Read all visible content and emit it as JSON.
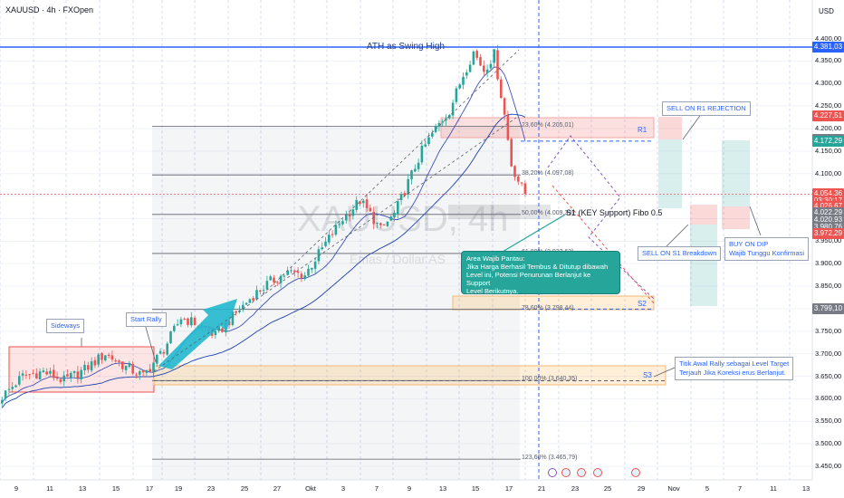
{
  "header": {
    "symbol": "XAUUSD · 4h · FXOpen",
    "currency": "USD"
  },
  "watermark": {
    "main": "XAUUSD, 4h",
    "sub": "Emas / Dollar AS"
  },
  "colors": {
    "up": "#26a69a",
    "down": "#ef5350",
    "accent": "#2962ff",
    "ma": "#3f51b5"
  },
  "chart_data": {
    "type": "candlestick",
    "ylim": [
      3440,
      4420
    ],
    "y_ticks": [
      "4.400,00",
      "4.350,00",
      "4.300,00",
      "4.250,00",
      "4.200,00",
      "4.150,00",
      "4.100,00",
      "4.050,00",
      "4.000,00",
      "3.950,00",
      "3.900,00",
      "3.850,00",
      "3.800,00",
      "3.750,00",
      "3.700,00",
      "3.650,00",
      "3.600,00",
      "3.550,00",
      "3.500,00",
      "3.450,00"
    ],
    "y_tick_values": [
      4400,
      4350,
      4300,
      4250,
      4200,
      4150,
      4100,
      4050,
      4000,
      3950,
      3900,
      3850,
      3800,
      3750,
      3700,
      3650,
      3600,
      3550,
      3500,
      3450
    ],
    "x_ticks": [
      "9",
      "11",
      "13",
      "15",
      "17",
      "19",
      "23",
      "25",
      "27",
      "Okt",
      "3",
      "7",
      "9",
      "13",
      "15",
      "17",
      "21",
      "23",
      "25",
      "29",
      "Nov",
      "5",
      "7",
      "11",
      "13"
    ],
    "price_tags": [
      {
        "label": "4.381,03",
        "value": 4381.03,
        "color": "#2962ff"
      },
      {
        "label": "4.227,51",
        "value": 4227.51,
        "color": "#ef5350"
      },
      {
        "label": "4.175,87",
        "value": 4175.87,
        "color": "#787b86"
      },
      {
        "label": "4.172,29",
        "value": 4172.29,
        "color": "#26a69a"
      },
      {
        "label": "4.054,36",
        "value": 4054.36,
        "color": "#ef5350"
      },
      {
        "label": "03:30:17",
        "value": 4040,
        "color": "#ef5350"
      },
      {
        "label": "4.026,67",
        "value": 4026.67,
        "color": "#ef5350"
      },
      {
        "label": "4.022,29",
        "value": 4012,
        "color": "#787b86"
      },
      {
        "label": "4.020,93",
        "value": 3997,
        "color": "#787b86"
      },
      {
        "label": "3.980,76",
        "value": 3981,
        "color": "#787b86"
      },
      {
        "label": "3.972,29",
        "value": 3966,
        "color": "#ef5350"
      },
      {
        "label": "3.799,10",
        "value": 3799.1,
        "color": "#787b86"
      }
    ],
    "fib_levels": [
      {
        "label": "23,60% (4.205,01)",
        "value": 4205.01
      },
      {
        "label": "38,20% (4.097,08)",
        "value": 4097.08
      },
      {
        "label": "50,00% (4.009,39)",
        "value": 4009.39
      },
      {
        "label": "61,80% (3.922,62)",
        "value": 3922.62
      },
      {
        "label": "78,60% (3.798,44)",
        "value": 3798.44
      },
      {
        "label": "100,00% (3.640,35)",
        "value": 3640.35
      },
      {
        "label": "123,60% (3.465,79)",
        "value": 3465.79
      }
    ],
    "levels": [
      {
        "label": "ATH as Swing High",
        "value": 4381
      },
      {
        "label": "R1",
        "value": 4172
      },
      {
        "label": "S1 (KEY Support) Fibo 0.5",
        "value": 4009
      },
      {
        "label": "S2",
        "value": 3799
      },
      {
        "label": "S3",
        "value": 3640
      }
    ],
    "waypoints": [
      {
        "bar": 0,
        "price": 3605
      },
      {
        "bar": 6,
        "price": 3650
      },
      {
        "bar": 12,
        "price": 3660
      },
      {
        "bar": 18,
        "price": 3640
      },
      {
        "bar": 24,
        "price": 3665
      },
      {
        "bar": 30,
        "price": 3700
      },
      {
        "bar": 36,
        "price": 3670
      },
      {
        "bar": 41,
        "price": 3650
      },
      {
        "bar": 47,
        "price": 3710
      },
      {
        "bar": 52,
        "price": 3780
      },
      {
        "bar": 57,
        "price": 3765
      },
      {
        "bar": 62,
        "price": 3740
      },
      {
        "bar": 68,
        "price": 3790
      },
      {
        "bar": 73,
        "price": 3830
      },
      {
        "bar": 78,
        "price": 3860
      },
      {
        "bar": 83,
        "price": 3880
      },
      {
        "bar": 88,
        "price": 3875
      },
      {
        "bar": 94,
        "price": 3945
      },
      {
        "bar": 99,
        "price": 4000
      },
      {
        "bar": 104,
        "price": 4040
      },
      {
        "bar": 107,
        "price": 4010
      },
      {
        "bar": 110,
        "price": 3975
      },
      {
        "bar": 114,
        "price": 4010
      },
      {
        "bar": 118,
        "price": 4080
      },
      {
        "bar": 122,
        "price": 4150
      },
      {
        "bar": 126,
        "price": 4200
      },
      {
        "bar": 130,
        "price": 4240
      },
      {
        "bar": 134,
        "price": 4320
      },
      {
        "bar": 137,
        "price": 4370
      },
      {
        "bar": 140,
        "price": 4330
      },
      {
        "bar": 143,
        "price": 4365
      },
      {
        "bar": 146,
        "price": 4230
      },
      {
        "bar": 148,
        "price": 4120
      },
      {
        "bar": 150,
        "price": 4085
      },
      {
        "bar": 152,
        "price": 4055
      }
    ]
  },
  "annotations": {
    "sideways": "Sideways",
    "start_rally": "Start Rally",
    "sell_r1": "SELL ON R1 REJECTION",
    "sell_s1": "SELL ON S1 Breakdown",
    "buy_dip": [
      "BUY ON DIP",
      "Wajib Tunggu Konfirmasi"
    ],
    "area_note": [
      "Area Wajib Pantau:",
      "Jika Harga Berhasil Tembus & Ditutup dibawah",
      "Level ini, Potensi Penurunan Berlanjut ke Support",
      "Level Berikutnya."
    ],
    "rally_target": [
      "Titik Awal Rally sebagai Level Target",
      "Terjauh Jika Koreksi  erus Berlanjut."
    ]
  }
}
